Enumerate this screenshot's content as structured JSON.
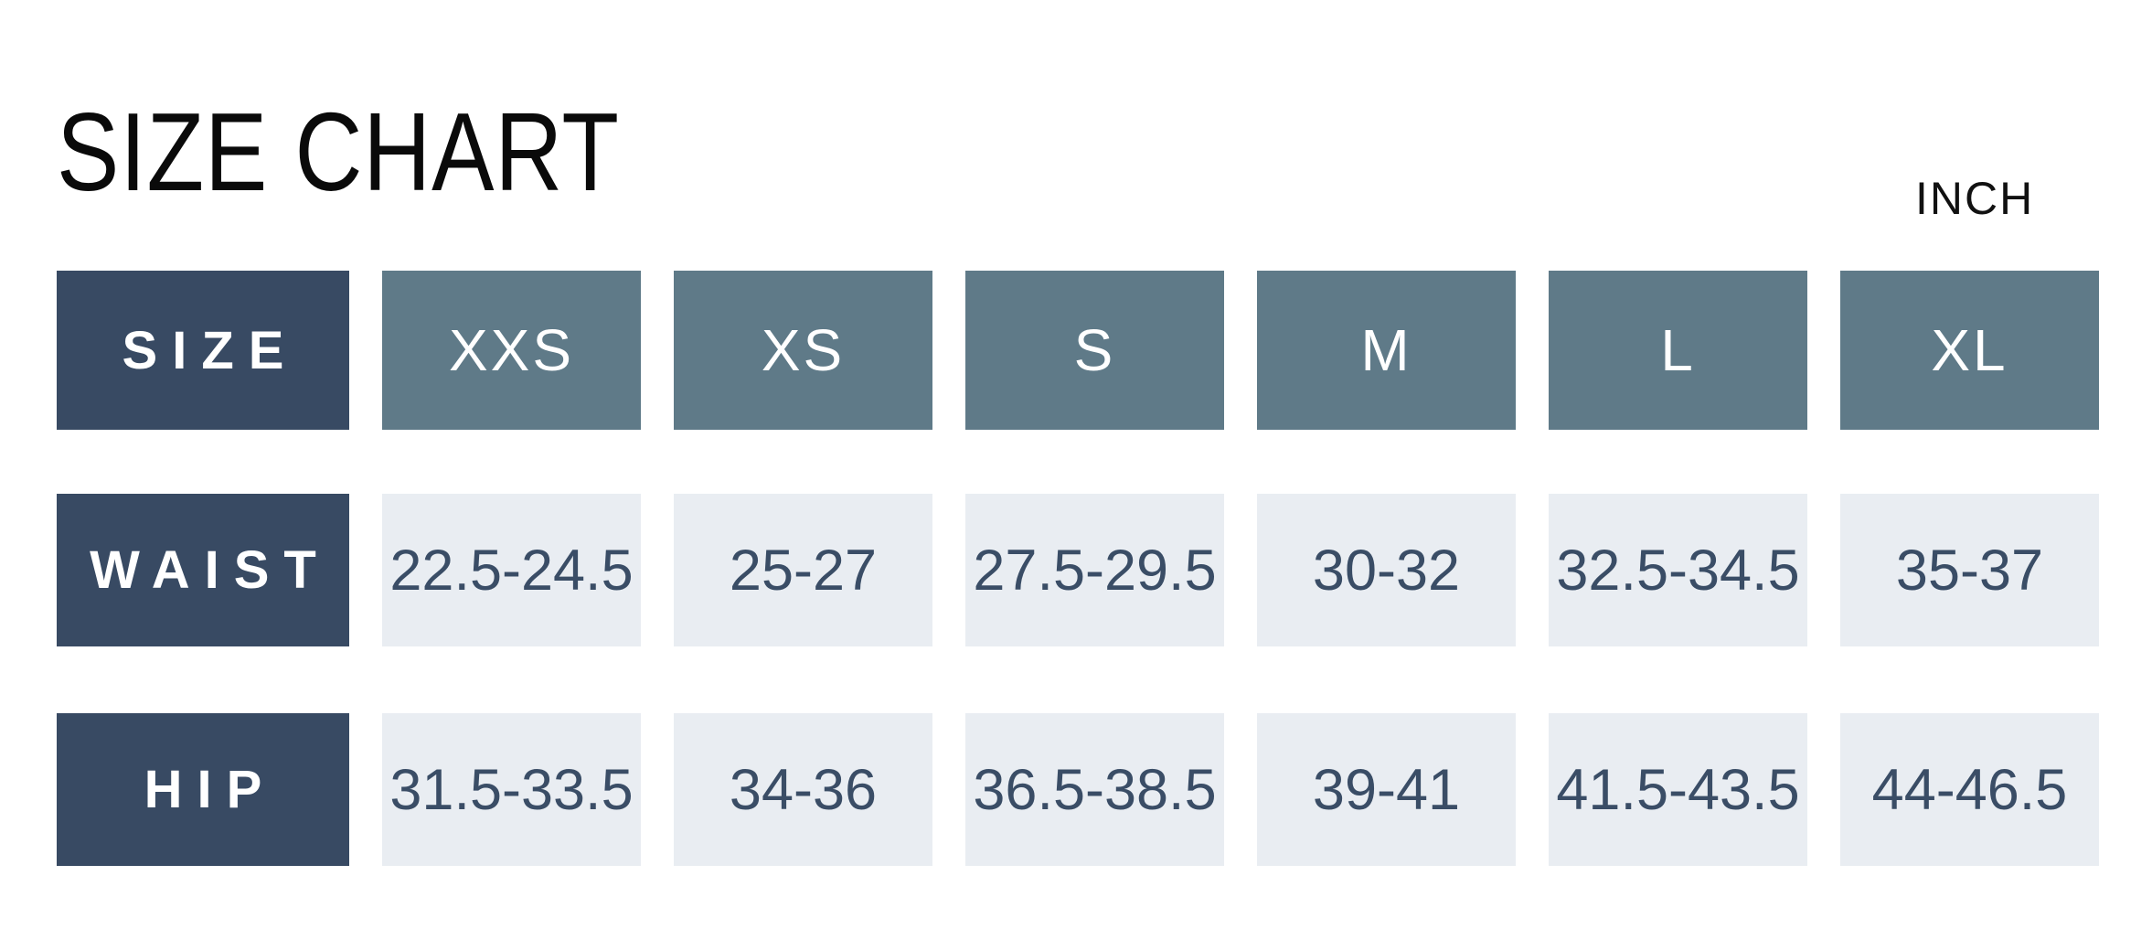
{
  "colors": {
    "header_label_bg": "#384a63",
    "size_cell_bg": "#5f7a88",
    "value_cell_bg": "#e9edf2",
    "value_text": "#3a4d66",
    "title_text": "#0a0a0a",
    "background": "#ffffff"
  },
  "chart_data": {
    "type": "table",
    "title": "SIZE CHART",
    "unit": "INCH",
    "columns": [
      "SIZE",
      "XXS",
      "XS",
      "S",
      "M",
      "L",
      "XL"
    ],
    "rows": [
      {
        "label": "WAIST",
        "values": [
          "22.5-24.5",
          "25-27",
          "27.5-29.5",
          "30-32",
          "32.5-34.5",
          "35-37"
        ]
      },
      {
        "label": "HIP",
        "values": [
          "31.5-33.5",
          "34-36",
          "36.5-38.5",
          "39-41",
          "41.5-43.5",
          "44-46.5"
        ]
      }
    ]
  }
}
